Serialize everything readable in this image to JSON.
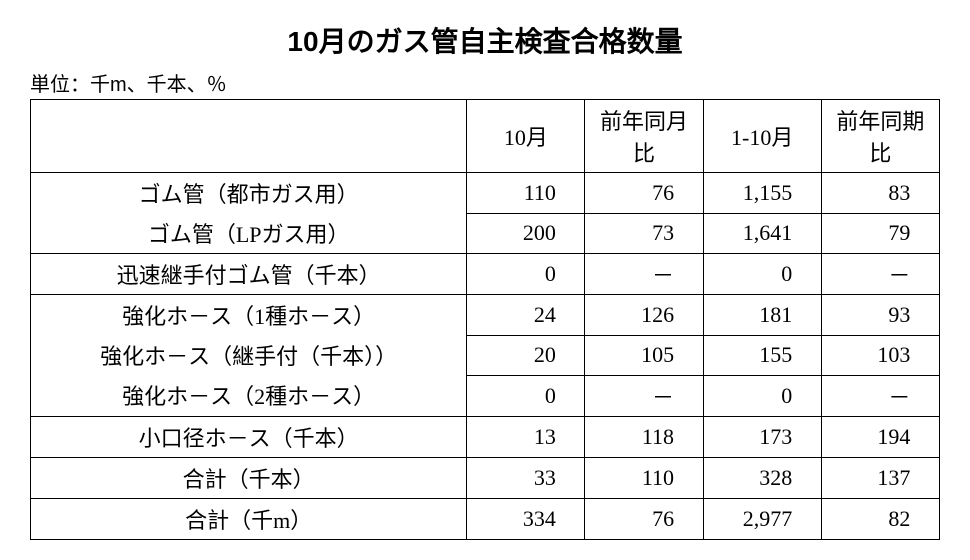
{
  "title": "10月のガス管自主検査合格数量",
  "unit": "単位：千m、千本、％",
  "columns": [
    "",
    "10月",
    "前年同月比",
    "1-10月",
    "前年同期比"
  ],
  "groups": [
    {
      "rows": [
        {
          "label": "ゴム管（都市ガス用）",
          "cells": [
            "110",
            "76",
            "1,155",
            "83"
          ]
        },
        {
          "label": "ゴム管（LPガス用）",
          "cells": [
            "200",
            "73",
            "1,641",
            "79"
          ]
        }
      ]
    },
    {
      "rows": [
        {
          "label": "迅速継手付ゴム管（千本）",
          "cells": [
            "0",
            "－",
            "0",
            "－"
          ]
        }
      ]
    },
    {
      "rows": [
        {
          "label": "強化ホ－ス（1種ホ－ス）",
          "cells": [
            "24",
            "126",
            "181",
            "93"
          ]
        },
        {
          "label": "強化ホ－ス（継手付（千本））",
          "cells": [
            "20",
            "105",
            "155",
            "103"
          ]
        },
        {
          "label": "強化ホ－ス（2種ホ－ス）",
          "cells": [
            "0",
            "－",
            "0",
            "－"
          ]
        }
      ]
    },
    {
      "rows": [
        {
          "label": "小口径ホ－ス（千本）",
          "cells": [
            "13",
            "118",
            "173",
            "194"
          ]
        }
      ]
    },
    {
      "rows": [
        {
          "label": "合計（千本）",
          "cells": [
            "33",
            "110",
            "328",
            "137"
          ]
        }
      ]
    },
    {
      "rows": [
        {
          "label": "合計（千m）",
          "cells": [
            "334",
            "76",
            "2,977",
            "82"
          ]
        }
      ]
    }
  ]
}
